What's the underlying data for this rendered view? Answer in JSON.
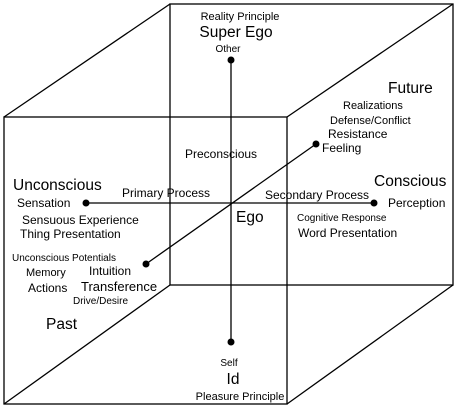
{
  "top": {
    "reality_principle": "Reality Principle",
    "super_ego": "Super Ego",
    "other": "Other"
  },
  "bottom": {
    "self": "Self",
    "id": "Id",
    "pleasure_principle": "Pleasure Principle"
  },
  "left": {
    "unconscious": "Unconscious",
    "sensation": "Sensation",
    "sensuous_experience": "Sensuous Experience",
    "thing_presentation": "Thing Presentation",
    "primary_process": "Primary Process"
  },
  "right": {
    "conscious": "Conscious",
    "perception": "Perception",
    "secondary_process": "Secondary Process",
    "cognitive_response": "Cognitive  Response",
    "word_presentation": "Word Presentation"
  },
  "back": {
    "future": "Future",
    "realizations": "Realizations",
    "defense_conflict": "Defense/Conflict",
    "resistance": "Resistance",
    "feeling": "Feeling"
  },
  "front": {
    "past": "Past",
    "unconscious_potentials": "Unconscious Potentials",
    "memory": "Memory",
    "intuition": "Intuition",
    "actions": "Actions",
    "transference": "Transference",
    "drive_desire": "Drive/Desire"
  },
  "center": {
    "preconscious": "Preconscious",
    "ego": "Ego"
  }
}
